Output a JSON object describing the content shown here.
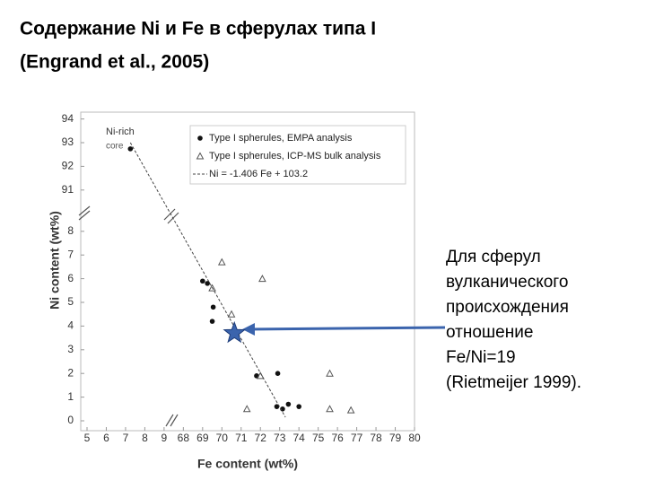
{
  "title": "Содержание  Ni  и Fe в сферулах типа I",
  "subtitle": "(Engrand et al.,  2005)",
  "note": [
    "Для сферул",
    "вулканического",
    "происхождения",
    "отношение",
    "Fe/Ni=19",
    "(Rietmeijer 1999)."
  ],
  "chart_data": {
    "type": "scatter",
    "xlabel": "Fe content (wt%)",
    "ylabel": "Ni content (wt%)",
    "annotations": [
      "Ni-rich",
      "core"
    ],
    "xlim": [
      5,
      80
    ],
    "xticks": [
      5,
      6,
      7,
      8,
      9,
      68,
      69,
      70,
      71,
      72,
      73,
      74,
      75,
      76,
      77,
      78,
      79,
      80
    ],
    "ylim": [
      0,
      94
    ],
    "yticks": [
      0,
      1,
      2,
      3,
      4,
      5,
      6,
      7,
      8,
      91,
      92,
      93,
      94
    ],
    "series": [
      {
        "name": "Type I spherules, EMPA analysis",
        "marker": "circle",
        "color": "#111111",
        "x": [
          7.25,
          69.0,
          69.25,
          69.55,
          69.5,
          71.8,
          72.9,
          72.85,
          73.15,
          73.45,
          74.0
        ],
        "values": [
          92.74,
          5.9,
          5.8,
          4.8,
          4.2,
          1.9,
          2.0,
          0.6,
          0.5,
          0.7,
          0.6
        ]
      },
      {
        "name": "Type I spherules, ICP-MS bulk analysis",
        "marker": "triangle",
        "color": "#555555",
        "x": [
          70.0,
          69.5,
          72.1,
          70.5,
          72.0,
          75.6,
          71.3,
          75.6,
          76.7
        ],
        "values": [
          6.7,
          5.6,
          6.0,
          4.5,
          1.9,
          2.0,
          0.5,
          0.5,
          0.45
        ]
      },
      {
        "name": "Ni = -1.406 Fe + 103.2",
        "marker": "dashed-line",
        "color": "#444444",
        "x": [
          7.25,
          73.3
        ],
        "values": [
          93.0,
          0.15
        ]
      }
    ],
    "highlight": {
      "x": 70.65,
      "y": 3.7,
      "color": "#3b64ad"
    }
  }
}
